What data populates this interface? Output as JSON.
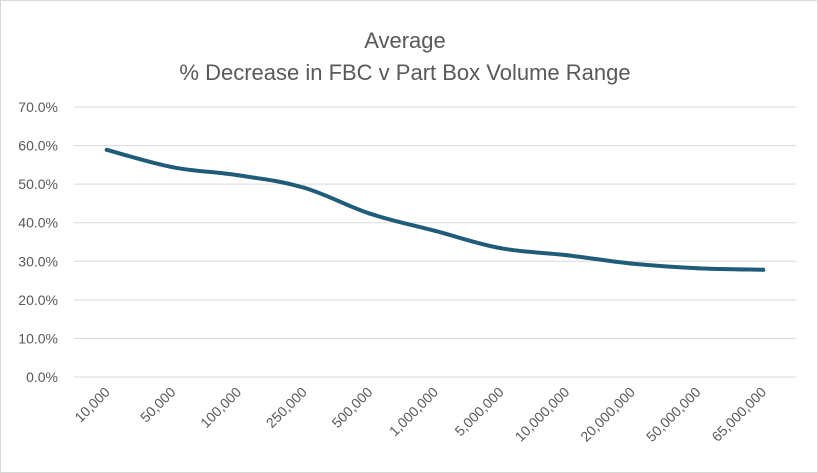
{
  "chart_data": {
    "type": "line",
    "title_lines": [
      "Average",
      "% Decrease in FBC v Part Box Volume Range"
    ],
    "xlabel": "",
    "ylabel": "",
    "categories": [
      "10,000",
      "50,000",
      "100,000",
      "250,000",
      "500,000",
      "1,000,000",
      "5,000,000",
      "10,000,000",
      "20,000,000",
      "50,000,000",
      "65,000,000"
    ],
    "series": [
      {
        "values": [
          58.9,
          54.4,
          52.3,
          49.1,
          42.4,
          37.9,
          33.4,
          31.6,
          29.4,
          28.2,
          27.8
        ],
        "color": "#1f5c7a"
      }
    ],
    "ylim": [
      0,
      70
    ],
    "y_ticks": [
      "0.0%",
      "10.0%",
      "20.0%",
      "30.0%",
      "40.0%",
      "50.0%",
      "60.0%",
      "70.0%"
    ],
    "grid": true,
    "gridline_color": "#d9d9d9",
    "text_color": "#595959",
    "legend": "none"
  }
}
